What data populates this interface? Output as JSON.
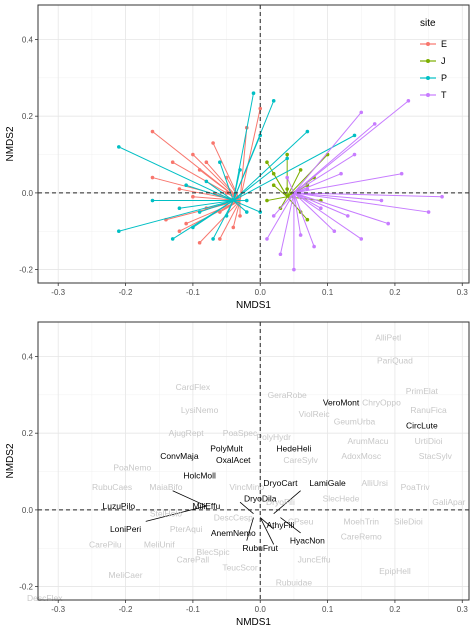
{
  "chart_data": [
    {
      "type": "scatter",
      "title": "",
      "xlabel": "NMDS1",
      "ylabel": "NMDS2",
      "xlim": [
        -0.33,
        0.31
      ],
      "ylim": [
        -0.235,
        0.49
      ],
      "xticks": [
        -0.3,
        -0.2,
        -0.1,
        0.0,
        0.1,
        0.2,
        0.3
      ],
      "xtick_labels": [
        "-0.3",
        "-0.2",
        "-0.1",
        "0.0",
        "0.1",
        "0.2",
        "0.3"
      ],
      "yticks": [
        -0.2,
        0.0,
        0.2,
        0.4
      ],
      "ytick_labels": [
        "-0.2",
        "0.0",
        "0.2",
        "0.4"
      ],
      "grid": true,
      "reference_lines": {
        "x": 0,
        "y": 0,
        "style": "dashed"
      },
      "legend": {
        "title": "site",
        "placement": "top-right"
      },
      "series": [
        {
          "name": "E",
          "color": "#F8766D",
          "centroid": [
            -0.03,
            -0.02
          ],
          "points": [
            [
              -0.16,
              0.16
            ],
            [
              -0.13,
              0.08
            ],
            [
              -0.16,
              0.04
            ],
            [
              -0.09,
              -0.13
            ],
            [
              -0.14,
              -0.07
            ],
            [
              -0.1,
              0.1
            ],
            [
              -0.11,
              -0.08
            ],
            [
              -0.05,
              0.04
            ],
            [
              -0.08,
              -0.04
            ],
            [
              -0.12,
              0.01
            ],
            [
              -0.06,
              -0.12
            ],
            [
              -0.07,
              0.13
            ],
            [
              -0.09,
              0.06
            ],
            [
              -0.04,
              -0.09
            ],
            [
              -0.1,
              -0.01
            ],
            [
              -0.05,
              0.0
            ],
            [
              -0.02,
              0.17
            ],
            [
              0.0,
              0.22
            ],
            [
              -0.12,
              -0.1
            ],
            [
              -0.06,
              -0.05
            ],
            [
              -0.03,
              -0.06
            ],
            [
              -0.08,
              0.08
            ]
          ]
        },
        {
          "name": "J",
          "color": "#7CAE00",
          "centroid": [
            0.04,
            -0.01
          ],
          "points": [
            [
              0.01,
              0.08
            ],
            [
              0.04,
              0.1
            ],
            [
              0.07,
              0.02
            ],
            [
              0.02,
              0.02
            ],
            [
              0.05,
              -0.01
            ],
            [
              0.03,
              -0.04
            ],
            [
              0.08,
              0.04
            ],
            [
              0.06,
              -0.05
            ],
            [
              0.02,
              0.05
            ],
            [
              0.09,
              -0.02
            ],
            [
              0.04,
              0.01
            ],
            [
              0.06,
              0.06
            ],
            [
              0.1,
              0.1
            ],
            [
              0.01,
              -0.02
            ],
            [
              0.07,
              -0.07
            ]
          ]
        },
        {
          "name": "P",
          "color": "#00BFC4",
          "centroid": [
            -0.04,
            -0.02
          ],
          "points": [
            [
              -0.21,
              0.12
            ],
            [
              -0.21,
              -0.1
            ],
            [
              -0.13,
              -0.12
            ],
            [
              -0.1,
              -0.09
            ],
            [
              -0.01,
              0.26
            ],
            [
              -0.06,
              0.08
            ],
            [
              -0.07,
              -0.12
            ],
            [
              -0.02,
              -0.05
            ],
            [
              -0.08,
              0.03
            ],
            [
              -0.16,
              -0.02
            ],
            [
              -0.05,
              -0.06
            ],
            [
              -0.11,
              0.02
            ],
            [
              0.02,
              0.24
            ],
            [
              0.0,
              0.15
            ],
            [
              0.04,
              0.09
            ],
            [
              -0.09,
              -0.05
            ],
            [
              -0.03,
              0.06
            ],
            [
              0.07,
              0.16
            ],
            [
              0.14,
              0.15
            ],
            [
              -0.12,
              -0.04
            ],
            [
              -0.02,
              -0.02
            ],
            [
              0.0,
              -0.05
            ]
          ]
        },
        {
          "name": "T",
          "color": "#C77CFF",
          "centroid": [
            0.05,
            0.0
          ],
          "points": [
            [
              0.22,
              0.24
            ],
            [
              0.17,
              0.18
            ],
            [
              0.15,
              0.21
            ],
            [
              0.21,
              0.05
            ],
            [
              0.27,
              -0.01
            ],
            [
              0.25,
              -0.05
            ],
            [
              0.19,
              -0.08
            ],
            [
              0.13,
              -0.06
            ],
            [
              0.09,
              -0.04
            ],
            [
              0.11,
              -0.1
            ],
            [
              0.05,
              -0.2
            ],
            [
              0.03,
              -0.16
            ],
            [
              0.08,
              -0.14
            ],
            [
              0.15,
              -0.12
            ],
            [
              0.14,
              0.1
            ],
            [
              0.04,
              0.04
            ],
            [
              0.02,
              -0.06
            ],
            [
              0.07,
              0.01
            ],
            [
              0.12,
              0.05
            ],
            [
              0.18,
              -0.02
            ],
            [
              0.06,
              -0.11
            ],
            [
              0.01,
              -0.12
            ]
          ]
        }
      ]
    },
    {
      "type": "scatter",
      "title": "",
      "xlabel": "NMDS1",
      "ylabel": "NMDS2",
      "xlim": [
        -0.33,
        0.31
      ],
      "ylim": [
        -0.235,
        0.49
      ],
      "xticks": [
        -0.3,
        -0.2,
        -0.1,
        0.0,
        0.1,
        0.2,
        0.3
      ],
      "xtick_labels": [
        "-0.3",
        "-0.2",
        "-0.1",
        "0.0",
        "0.1",
        "0.2",
        "0.3"
      ],
      "yticks": [
        -0.2,
        0.0,
        0.2,
        0.4
      ],
      "ytick_labels": [
        "-0.2",
        "0.0",
        "0.2",
        "0.4"
      ],
      "grid": true,
      "reference_lines": {
        "x": 0,
        "y": 0,
        "style": "dashed"
      },
      "label_colors": {
        "highlight": "#000000",
        "faded": "#C8C8C8"
      },
      "species": [
        {
          "label": "AlliPetl",
          "x": 0.19,
          "y": 0.45,
          "highlight": false
        },
        {
          "label": "PariQuad",
          "x": 0.2,
          "y": 0.39,
          "highlight": false
        },
        {
          "label": "CardFlex",
          "x": -0.1,
          "y": 0.32,
          "highlight": false
        },
        {
          "label": "PrimElat",
          "x": 0.24,
          "y": 0.31,
          "highlight": false
        },
        {
          "label": "GeraRobe",
          "x": 0.04,
          "y": 0.3,
          "highlight": false
        },
        {
          "label": "VeroMont",
          "x": 0.12,
          "y": 0.28,
          "highlight": true
        },
        {
          "label": "ChryOppo",
          "x": 0.18,
          "y": 0.28,
          "highlight": false
        },
        {
          "label": "RanuFica",
          "x": 0.25,
          "y": 0.26,
          "highlight": false
        },
        {
          "label": "LysiNemo",
          "x": -0.09,
          "y": 0.26,
          "highlight": false
        },
        {
          "label": "ViolReic",
          "x": 0.08,
          "y": 0.25,
          "highlight": false
        },
        {
          "label": "GeumUrba",
          "x": 0.14,
          "y": 0.23,
          "highlight": false
        },
        {
          "label": "CircLute",
          "x": 0.24,
          "y": 0.22,
          "highlight": true
        },
        {
          "label": "AjugRept",
          "x": -0.11,
          "y": 0.2,
          "highlight": false
        },
        {
          "label": "PoaSpec",
          "x": -0.03,
          "y": 0.2,
          "highlight": false
        },
        {
          "label": "PolyHydr",
          "x": 0.02,
          "y": 0.19,
          "highlight": false
        },
        {
          "label": "ArumMacu",
          "x": 0.16,
          "y": 0.18,
          "highlight": false
        },
        {
          "label": "UrtiDioi",
          "x": 0.25,
          "y": 0.18,
          "highlight": false
        },
        {
          "label": "PolyMult",
          "x": -0.05,
          "y": 0.16,
          "highlight": true
        },
        {
          "label": "HedeHeli",
          "x": 0.05,
          "y": 0.16,
          "highlight": true
        },
        {
          "label": "ConvMaja",
          "x": -0.12,
          "y": 0.14,
          "highlight": true
        },
        {
          "label": "AdoxMosc",
          "x": 0.15,
          "y": 0.14,
          "highlight": false
        },
        {
          "label": "StacSylv",
          "x": 0.26,
          "y": 0.14,
          "highlight": false
        },
        {
          "label": "OxalAcet",
          "x": -0.04,
          "y": 0.13,
          "highlight": true
        },
        {
          "label": "CareSylv",
          "x": 0.06,
          "y": 0.13,
          "highlight": false
        },
        {
          "label": "PoaNemo",
          "x": -0.19,
          "y": 0.11,
          "highlight": false
        },
        {
          "label": "HolcMoll",
          "x": -0.09,
          "y": 0.09,
          "highlight": true
        },
        {
          "label": "DryoCart",
          "x": 0.03,
          "y": 0.07,
          "highlight": true
        },
        {
          "label": "LamiGale",
          "x": 0.1,
          "y": 0.07,
          "highlight": true
        },
        {
          "label": "AlliUrsi",
          "x": 0.17,
          "y": 0.07,
          "highlight": false
        },
        {
          "label": "RubuCaes",
          "x": -0.22,
          "y": 0.06,
          "highlight": false
        },
        {
          "label": "MaiaBifo",
          "x": -0.14,
          "y": 0.06,
          "highlight": false
        },
        {
          "label": "VincMino",
          "x": -0.02,
          "y": 0.06,
          "highlight": false
        },
        {
          "label": "PoaTriv",
          "x": 0.23,
          "y": 0.06,
          "highlight": false
        },
        {
          "label": "DryoDila",
          "x": 0.0,
          "y": 0.03,
          "highlight": true
        },
        {
          "label": "SlecHede",
          "x": 0.12,
          "y": 0.03,
          "highlight": false
        },
        {
          "label": "DryoFili",
          "x": 0.03,
          "y": 0.02,
          "highlight": false
        },
        {
          "label": "GaliApar",
          "x": 0.28,
          "y": 0.02,
          "highlight": false
        },
        {
          "label": "LuzuPilo",
          "x": -0.21,
          "y": 0.01,
          "highlight": true
        },
        {
          "label": "MiliEffu",
          "x": -0.08,
          "y": 0.01,
          "highlight": true
        },
        {
          "label": "StelHolo",
          "x": -0.14,
          "y": -0.01,
          "highlight": false
        },
        {
          "label": "DescCesp",
          "x": -0.04,
          "y": -0.02,
          "highlight": false
        },
        {
          "label": "CPseu",
          "x": 0.06,
          "y": -0.03,
          "highlight": false
        },
        {
          "label": "MoehTrin",
          "x": 0.15,
          "y": -0.03,
          "highlight": false
        },
        {
          "label": "SileDioi",
          "x": 0.22,
          "y": -0.03,
          "highlight": false
        },
        {
          "label": "LoniPeri",
          "x": -0.2,
          "y": -0.05,
          "highlight": true
        },
        {
          "label": "PterAqui",
          "x": -0.11,
          "y": -0.05,
          "highlight": false
        },
        {
          "label": "AthyFili",
          "x": 0.03,
          "y": -0.04,
          "highlight": true
        },
        {
          "label": "AnemNemo",
          "x": -0.04,
          "y": -0.06,
          "highlight": true
        },
        {
          "label": "CareRemo",
          "x": 0.15,
          "y": -0.07,
          "highlight": false
        },
        {
          "label": "HyacNon",
          "x": 0.07,
          "y": -0.08,
          "highlight": true
        },
        {
          "label": "CarePilu",
          "x": -0.23,
          "y": -0.09,
          "highlight": false
        },
        {
          "label": "MeliUnif",
          "x": -0.15,
          "y": -0.09,
          "highlight": false
        },
        {
          "label": "BlecSpic",
          "x": -0.07,
          "y": -0.11,
          "highlight": false
        },
        {
          "label": "RubuFrut",
          "x": 0.0,
          "y": -0.1,
          "highlight": true
        },
        {
          "label": "CarePall",
          "x": -0.1,
          "y": -0.13,
          "highlight": false
        },
        {
          "label": "JuncEffu",
          "x": 0.08,
          "y": -0.13,
          "highlight": false
        },
        {
          "label": "MeliCaer",
          "x": -0.2,
          "y": -0.17,
          "highlight": false
        },
        {
          "label": "TeucScor",
          "x": -0.03,
          "y": -0.15,
          "highlight": false
        },
        {
          "label": "EpipHell",
          "x": 0.2,
          "y": -0.16,
          "highlight": false
        },
        {
          "label": "Rubuidae",
          "x": 0.05,
          "y": -0.19,
          "highlight": false
        },
        {
          "label": "DescFlex",
          "x": -0.32,
          "y": -0.23,
          "highlight": false
        }
      ],
      "leader_lines": [
        {
          "from": [
            -0.13,
            0.05
          ],
          "to": [
            -0.08,
            0.01
          ]
        },
        {
          "from": [
            -0.17,
            -0.03
          ],
          "to": [
            -0.08,
            0.01
          ]
        },
        {
          "from": [
            -0.03,
            0.02
          ],
          "to": [
            -0.01,
            -0.01
          ]
        },
        {
          "from": [
            0.06,
            0.05
          ],
          "to": [
            0.02,
            -0.01
          ]
        },
        {
          "from": [
            0.02,
            -0.05
          ],
          "to": [
            0.0,
            -0.02
          ]
        },
        {
          "from": [
            0.02,
            -0.09
          ],
          "to": [
            0.0,
            -0.02
          ]
        },
        {
          "from": [
            0.06,
            -0.06
          ],
          "to": [
            0.03,
            -0.02
          ]
        },
        {
          "from": [
            -0.02,
            -0.08
          ],
          "to": [
            -0.01,
            -0.02
          ]
        }
      ]
    }
  ]
}
